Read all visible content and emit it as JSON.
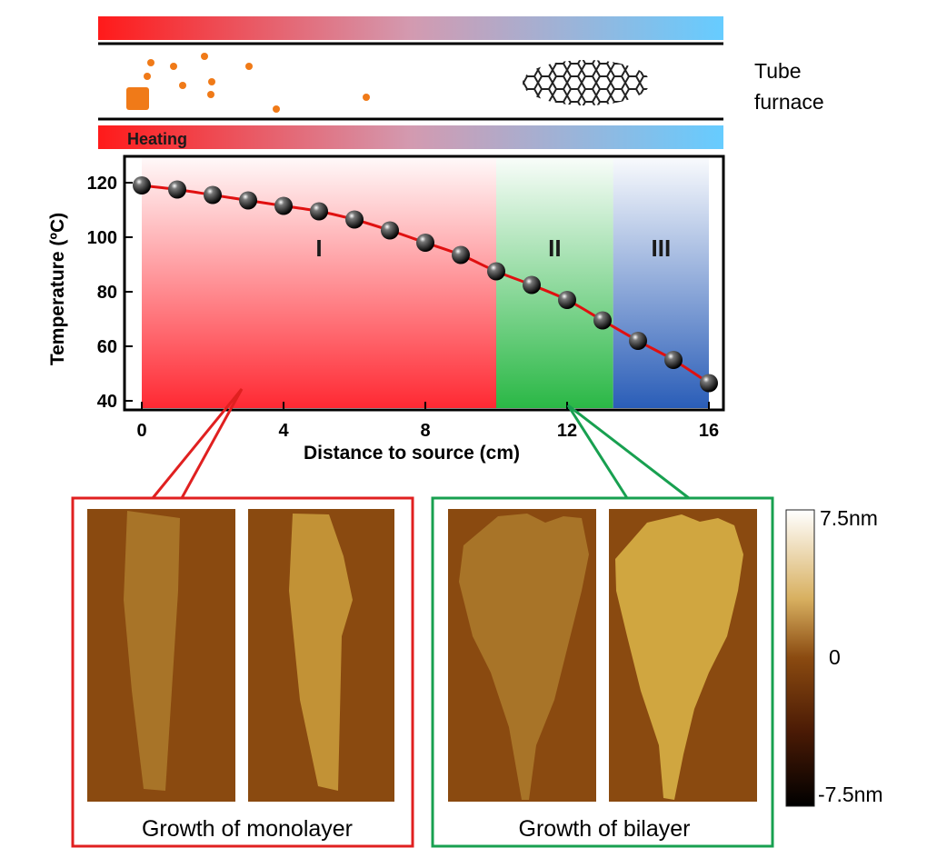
{
  "furnace": {
    "label_line1": "Tube",
    "label_line2": "furnace",
    "heating_label": "Heating"
  },
  "chart_data": {
    "type": "line",
    "xlabel": "Distance to source (cm)",
    "ylabel": "Temperature (ºC)",
    "xlim": [
      0,
      16
    ],
    "ylim": [
      40,
      120
    ],
    "xticks": [
      0,
      4,
      8,
      12,
      16
    ],
    "yticks": [
      40,
      60,
      80,
      100,
      120
    ],
    "series": [
      {
        "x": [
          0,
          1,
          2,
          3,
          4,
          5,
          6,
          7,
          8,
          9,
          10,
          11,
          12,
          13,
          14,
          15,
          16
        ],
        "y": [
          119,
          117.5,
          115.5,
          113.5,
          111.5,
          109.5,
          106.5,
          102.5,
          98,
          93.5,
          87.5,
          82.5,
          77,
          69.5,
          62,
          55,
          46.5
        ]
      }
    ],
    "zones": [
      {
        "label": "I",
        "x_range": [
          0,
          10
        ],
        "color": "#ff1e28"
      },
      {
        "label": "II",
        "x_range": [
          10,
          13.3
        ],
        "color": "#1fb43c"
      },
      {
        "label": "III",
        "x_range": [
          13.3,
          16
        ],
        "color": "#1f55b4"
      }
    ],
    "grid": false
  },
  "afm": {
    "mono_label": "Growth of monolayer",
    "bi_label": "Growth of bilayer",
    "scale_max": "7.5nm",
    "scale_mid": "0",
    "scale_min": "-7.5nm"
  },
  "colors": {
    "hot": "#ff1a1a",
    "cold": "#66ccff",
    "line": "#e01010",
    "mono_frame": "#e02020",
    "bi_frame": "#18a050",
    "afm_bg": "#8a4a10",
    "flake_mono": "#b98830",
    "flake_bi": "#c69a36",
    "particle": "#f07a18"
  }
}
